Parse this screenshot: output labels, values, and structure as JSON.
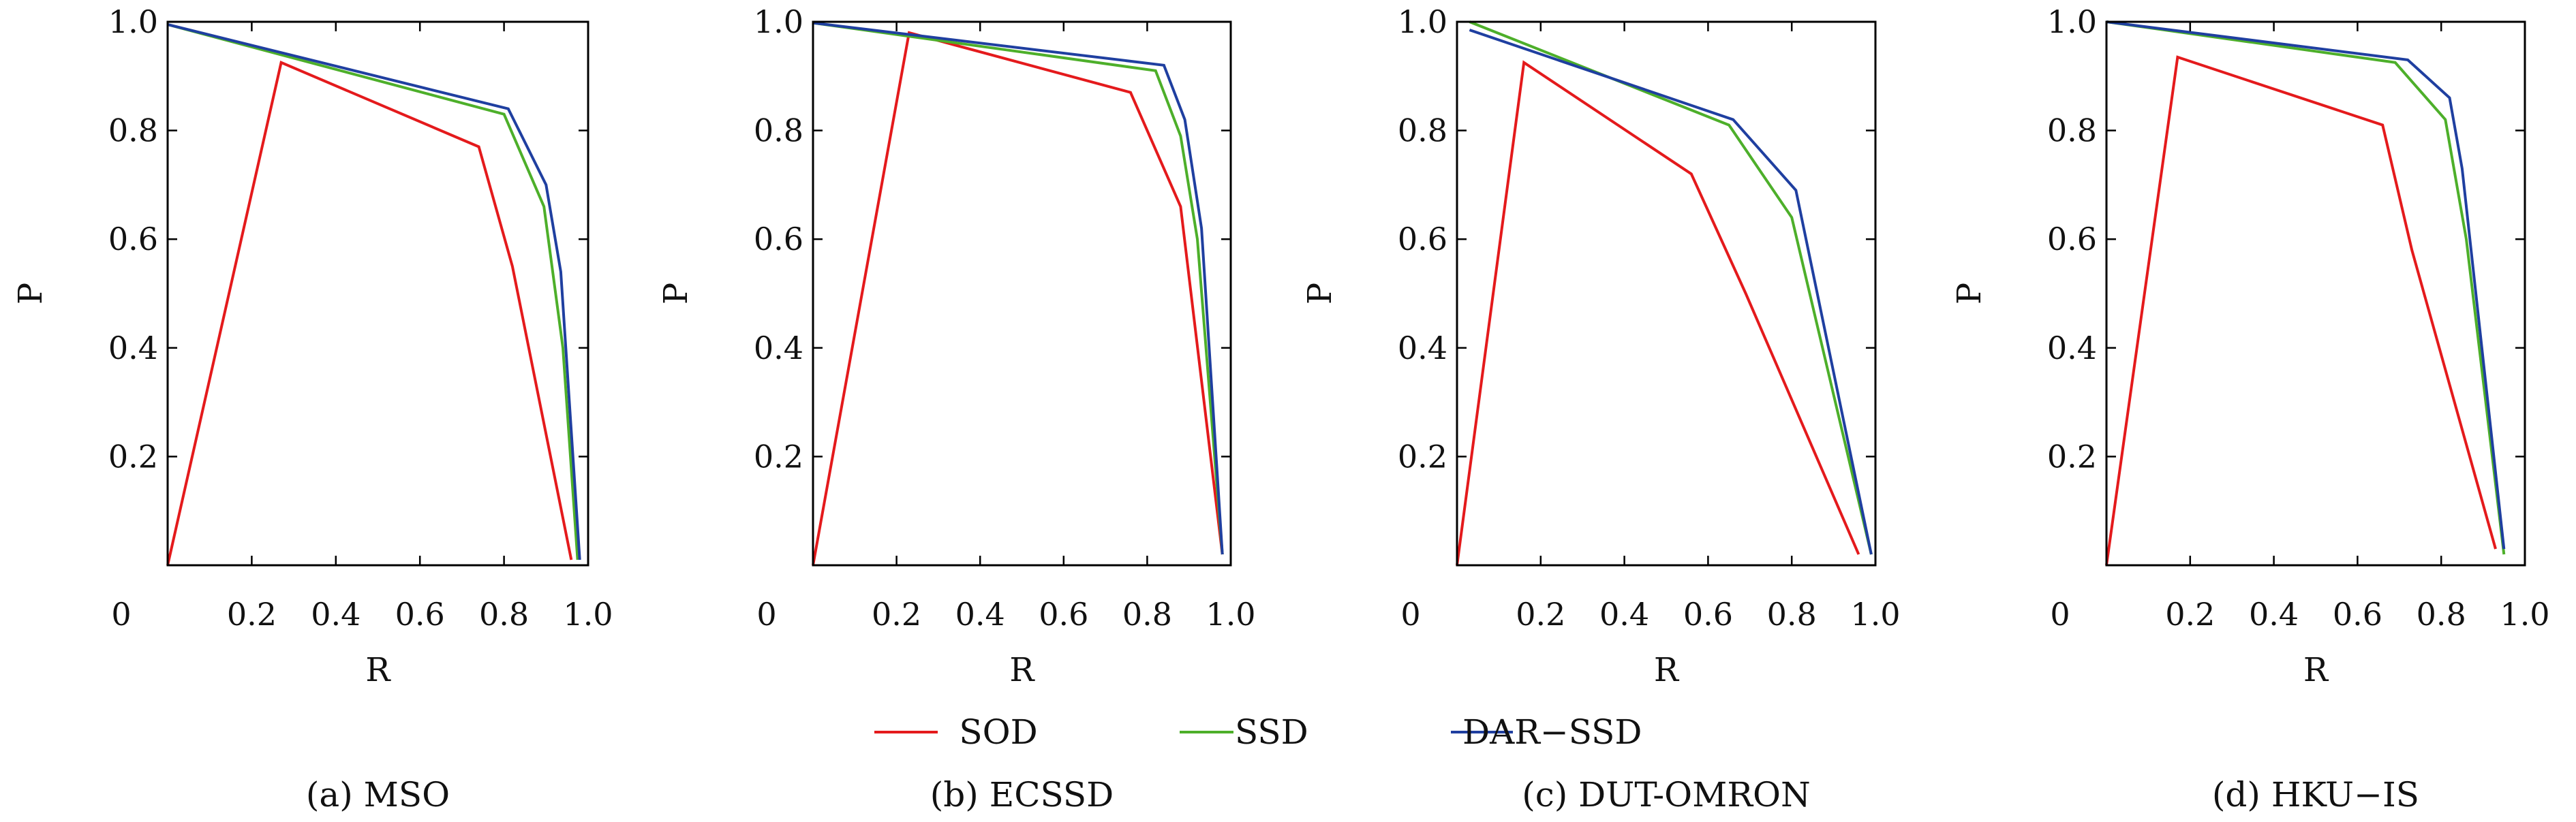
{
  "legend": [
    {
      "name": "SOD",
      "color": "#e41a1c"
    },
    {
      "name": "SSD",
      "color": "#4daf2a"
    },
    {
      "name": "DAR−SSD",
      "color": "#1f3fa0"
    }
  ],
  "chart_data": [
    {
      "type": "line",
      "caption": "(a) MSO",
      "xlabel": "R",
      "ylabel": "P",
      "xlim": [
        0,
        1.0
      ],
      "ylim": [
        0,
        1.0
      ],
      "xticks": [
        "0.2",
        "0.4",
        "0.6",
        "0.8",
        "1.0"
      ],
      "yticks": [
        "0.2",
        "0.4",
        "0.6",
        "0.8",
        "1.0"
      ],
      "origin_label": "0",
      "grid": false,
      "series": [
        {
          "name": "SOD",
          "color": "#e41a1c",
          "points": [
            [
              0.0,
              0.0
            ],
            [
              0.27,
              0.925
            ],
            [
              0.74,
              0.77
            ],
            [
              0.82,
              0.55
            ],
            [
              0.96,
              0.01
            ]
          ]
        },
        {
          "name": "SSD",
          "color": "#4daf2a",
          "points": [
            [
              0.0,
              0.995
            ],
            [
              0.8,
              0.83
            ],
            [
              0.895,
              0.66
            ],
            [
              0.94,
              0.4
            ],
            [
              0.975,
              0.01
            ]
          ]
        },
        {
          "name": "DAR−SSD",
          "color": "#1f3fa0",
          "points": [
            [
              0.0,
              0.995
            ],
            [
              0.81,
              0.84
            ],
            [
              0.9,
              0.7
            ],
            [
              0.935,
              0.54
            ],
            [
              0.98,
              0.01
            ]
          ]
        }
      ]
    },
    {
      "type": "line",
      "caption": "(b) ECSSD",
      "xlabel": "R",
      "ylabel": "P",
      "xlim": [
        0,
        1.0
      ],
      "ylim": [
        0,
        1.0
      ],
      "xticks": [
        "0.2",
        "0.4",
        "0.6",
        "0.8",
        "1.0"
      ],
      "yticks": [
        "0.2",
        "0.4",
        "0.6",
        "0.8",
        "1.0"
      ],
      "origin_label": "0",
      "grid": false,
      "series": [
        {
          "name": "SOD",
          "color": "#e41a1c",
          "points": [
            [
              0.0,
              0.0
            ],
            [
              0.23,
              0.98
            ],
            [
              0.76,
              0.87
            ],
            [
              0.88,
              0.66
            ],
            [
              0.98,
              0.02
            ]
          ]
        },
        {
          "name": "SSD",
          "color": "#4daf2a",
          "points": [
            [
              0.0,
              0.998
            ],
            [
              0.82,
              0.91
            ],
            [
              0.88,
              0.79
            ],
            [
              0.92,
              0.6
            ],
            [
              0.98,
              0.02
            ]
          ]
        },
        {
          "name": "DAR−SSD",
          "color": "#1f3fa0",
          "points": [
            [
              0.0,
              0.998
            ],
            [
              0.84,
              0.92
            ],
            [
              0.89,
              0.82
            ],
            [
              0.93,
              0.62
            ],
            [
              0.98,
              0.02
            ]
          ]
        }
      ]
    },
    {
      "type": "line",
      "caption": "(c) DUT-OMRON",
      "xlabel": "R",
      "ylabel": "P",
      "xlim": [
        0,
        1.0
      ],
      "ylim": [
        0,
        1.0
      ],
      "xticks": [
        "0.2",
        "0.4",
        "0.6",
        "0.8",
        "1.0"
      ],
      "yticks": [
        "0.2",
        "0.4",
        "0.6",
        "0.8",
        "1.0"
      ],
      "origin_label": "0",
      "grid": false,
      "series": [
        {
          "name": "SOD",
          "color": "#e41a1c",
          "points": [
            [
              0.0,
              0.0
            ],
            [
              0.16,
              0.925
            ],
            [
              0.56,
              0.72
            ],
            [
              0.69,
              0.5
            ],
            [
              0.96,
              0.02
            ]
          ]
        },
        {
          "name": "SSD",
          "color": "#4daf2a",
          "points": [
            [
              0.03,
              1.0
            ],
            [
              0.65,
              0.81
            ],
            [
              0.8,
              0.64
            ],
            [
              0.99,
              0.02
            ]
          ]
        },
        {
          "name": "DAR−SSD",
          "color": "#1f3fa0",
          "points": [
            [
              0.03,
              0.985
            ],
            [
              0.66,
              0.82
            ],
            [
              0.81,
              0.69
            ],
            [
              0.99,
              0.02
            ]
          ]
        }
      ]
    },
    {
      "type": "line",
      "caption": "(d) HKU−IS",
      "xlabel": "R",
      "ylabel": "P",
      "xlim": [
        0,
        1.0
      ],
      "ylim": [
        0,
        1.0
      ],
      "xticks": [
        "0.2",
        "0.4",
        "0.6",
        "0.8",
        "1.0"
      ],
      "yticks": [
        "0.2",
        "0.4",
        "0.6",
        "0.8",
        "1.0"
      ],
      "origin_label": "0",
      "grid": false,
      "series": [
        {
          "name": "SOD",
          "color": "#e41a1c",
          "points": [
            [
              0.0,
              0.0
            ],
            [
              0.17,
              0.935
            ],
            [
              0.66,
              0.81
            ],
            [
              0.73,
              0.58
            ],
            [
              0.93,
              0.03
            ]
          ]
        },
        {
          "name": "SSD",
          "color": "#4daf2a",
          "points": [
            [
              0.0,
              1.0
            ],
            [
              0.69,
              0.925
            ],
            [
              0.81,
              0.82
            ],
            [
              0.86,
              0.6
            ],
            [
              0.95,
              0.02
            ]
          ]
        },
        {
          "name": "DAR−SSD",
          "color": "#1f3fa0",
          "points": [
            [
              0.0,
              1.0
            ],
            [
              0.72,
              0.93
            ],
            [
              0.82,
              0.86
            ],
            [
              0.85,
              0.73
            ],
            [
              0.95,
              0.03
            ]
          ]
        }
      ]
    }
  ]
}
